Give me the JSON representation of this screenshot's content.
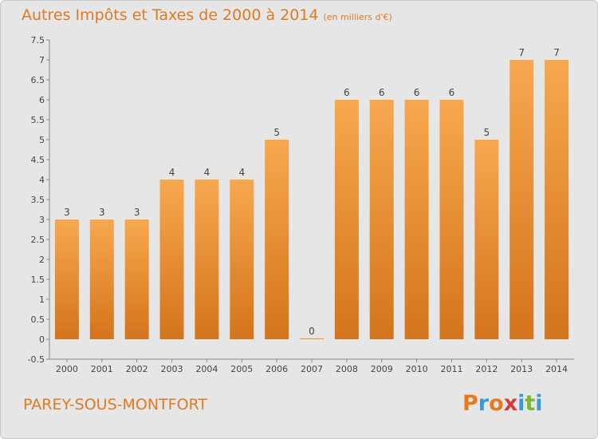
{
  "title": "Autres Impôts et Taxes de 2000 à 2014",
  "unit": "(en milliers d'€)",
  "town": "PAREY-SOUS-MONTFORT",
  "brand": {
    "letters": [
      "P",
      "r",
      "o",
      "x",
      "i",
      "t",
      "i"
    ],
    "colors": [
      "#e87a1e",
      "#3a9ad8",
      "#e87a1e",
      "#d63b3b",
      "#3a9ad8",
      "#7cb82f",
      "#3a9ad8"
    ]
  },
  "colors": {
    "bar_light": "#f7a84e",
    "bar_dark": "#d4741c",
    "axis_text": "#444444",
    "grid": "#ffffff"
  },
  "chart_data": {
    "type": "bar",
    "categories": [
      "2000",
      "2001",
      "2002",
      "2003",
      "2004",
      "2005",
      "2006",
      "2007",
      "2008",
      "2009",
      "2010",
      "2011",
      "2012",
      "2013",
      "2014"
    ],
    "values": [
      3,
      3,
      3,
      4,
      4,
      4,
      5,
      0,
      6,
      6,
      6,
      6,
      5,
      7,
      7
    ],
    "yticks": [
      "-0.5",
      "0",
      "0.5",
      "1",
      "1.5",
      "2",
      "2.5",
      "3",
      "3.5",
      "4",
      "4.5",
      "5",
      "5.5",
      "6",
      "6.5",
      "7",
      "7.5"
    ],
    "ylim": [
      -0.5,
      7.5
    ],
    "grid": false
  }
}
